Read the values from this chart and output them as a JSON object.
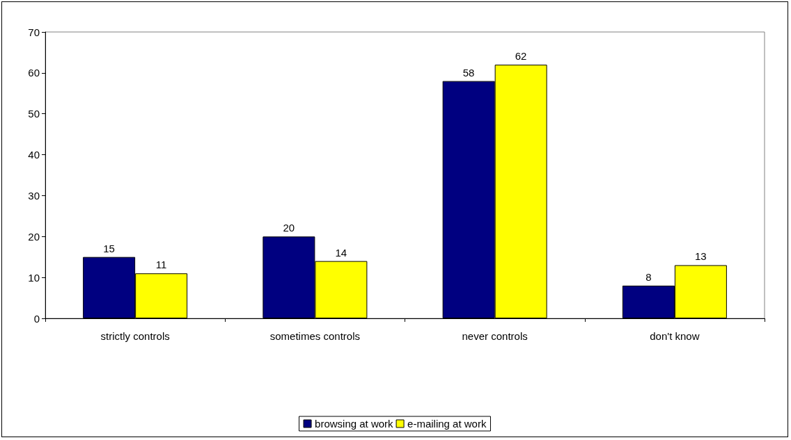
{
  "chart_data": {
    "type": "bar",
    "categories": [
      "strictly controls",
      "sometimes controls",
      "never controls",
      "don't know"
    ],
    "series": [
      {
        "name": "browsing at work",
        "color": "#000080",
        "values": [
          15,
          20,
          58,
          8
        ]
      },
      {
        "name": "e-mailing at work",
        "color": "#ffff00",
        "values": [
          11,
          14,
          62,
          13
        ]
      }
    ],
    "ylim": [
      0,
      70
    ],
    "yticks": [
      0,
      10,
      20,
      30,
      40,
      50,
      60,
      70
    ],
    "data_labels": true,
    "legend": "bottom",
    "grid": false
  }
}
